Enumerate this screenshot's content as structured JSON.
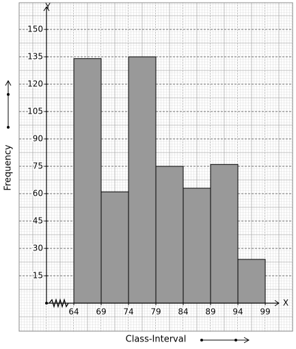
{
  "chart_data": {
    "type": "histogram",
    "x_label": "Class-Interval",
    "y_label": "Frequency",
    "x_axis_letter": "X",
    "y_axis_letter": "Y",
    "bins": [
      64,
      69,
      74,
      79,
      84,
      89,
      94,
      99
    ],
    "values": [
      134,
      61,
      135,
      75,
      63,
      76,
      24
    ],
    "color": "#999999",
    "xlim": [
      64,
      99
    ],
    "ylim": [
      0,
      150
    ],
    "yticks": [
      15,
      30,
      45,
      60,
      75,
      90,
      105,
      120,
      135,
      150
    ],
    "grid": true
  }
}
